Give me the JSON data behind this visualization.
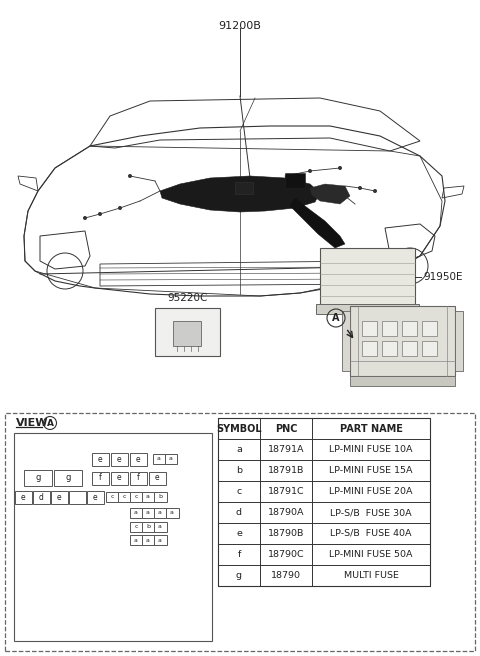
{
  "bg_color": "#ffffff",
  "label_91200B": "91200B",
  "label_91950E": "91950E",
  "label_95220C": "95220C",
  "label_A": "A",
  "view_label": "VIEW",
  "table_headers": [
    "SYMBOL",
    "PNC",
    "PART NAME"
  ],
  "table_rows": [
    [
      "a",
      "18791A",
      "LP-MINI FUSE 10A"
    ],
    [
      "b",
      "18791B",
      "LP-MINI FUSE 15A"
    ],
    [
      "c",
      "18791C",
      "LP-MINI FUSE 20A"
    ],
    [
      "d",
      "18790A",
      "LP-S/B  FUSE 30A"
    ],
    [
      "e",
      "18790B",
      "LP-S/B  FUSE 40A"
    ],
    [
      "f",
      "18790C",
      "LP-MINI FUSE 50A"
    ],
    [
      "g",
      "18790",
      "MULTI FUSE"
    ]
  ],
  "car_color": "#333333",
  "fuse_slot_edge": "#555555",
  "fuse_slot_face": "#ffffff",
  "table_line_color": "#333333",
  "dashed_border_color": "#666666"
}
